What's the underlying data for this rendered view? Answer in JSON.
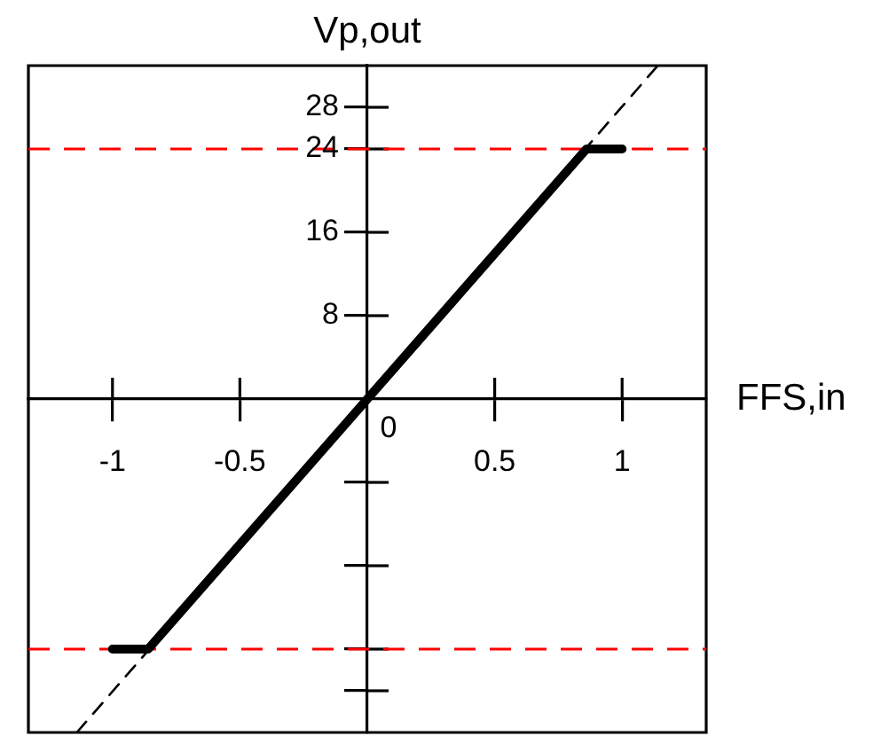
{
  "chart_data": {
    "type": "line",
    "xlabel": "FFS,in",
    "ylabel": "Vp,out",
    "series": [
      {
        "color": "#000000",
        "line_style": "solid",
        "x": [
          -1,
          -0.86,
          0.86,
          1
        ],
        "values": [
          -24,
          -24,
          24,
          24
        ]
      },
      {
        "color": "#000000",
        "line_style": "dashed",
        "x": [
          -1.14,
          1.14
        ],
        "values": [
          -32,
          32
        ]
      }
    ],
    "xlim": [
      -1.33,
      1.33
    ],
    "ylim": [
      -32,
      32
    ],
    "xticks": [
      -1,
      -0.5,
      0.5,
      1
    ],
    "yticks": [
      {
        "value": -28,
        "label": null
      },
      {
        "value": -24,
        "label": null
      },
      {
        "value": -16,
        "label": null
      },
      {
        "value": -8,
        "label": null
      },
      8,
      16,
      24,
      28
    ],
    "ref_lines": [
      {
        "axis": "y",
        "value": 24,
        "color": "#ff0000",
        "line_style": "dashed"
      },
      {
        "axis": "y",
        "value": -24,
        "color": "#ff0000",
        "line_style": "dashed"
      }
    ],
    "annotations": [
      {
        "text": "0",
        "x": 0,
        "y": 0
      }
    ],
    "marker": "none",
    "grid": false,
    "legend": false
  }
}
